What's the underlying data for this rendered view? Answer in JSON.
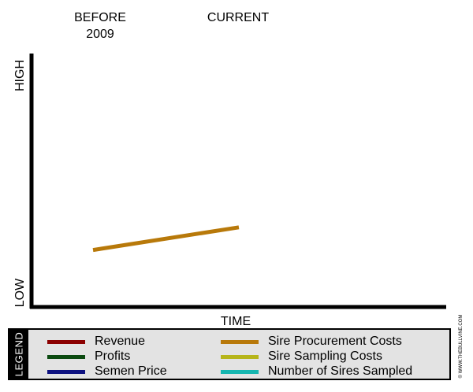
{
  "chart_data": {
    "type": "line",
    "x": [
      "BEFORE 2009",
      "CURRENT"
    ],
    "x_header_labels": [
      "BEFORE\n2009",
      "CURRENT"
    ],
    "xlabel": "TIME",
    "y_high_label": "HIGH",
    "y_low_label": "LOW",
    "ylim": [
      0,
      100
    ],
    "grid": false,
    "legend_placement": "bottom",
    "legend_title": "LEGEND",
    "series": [
      {
        "name": "Sire Procurement Costs",
        "values": [
          22,
          31
        ],
        "color": "#b8790a"
      }
    ],
    "legend": [
      {
        "name": "Revenue",
        "color": "#8b0000"
      },
      {
        "name": "Profits",
        "color": "#0b4a10"
      },
      {
        "name": "Semen Price",
        "color": "#0e1280"
      },
      {
        "name": "Sire Procurement Costs",
        "color": "#b8790a"
      },
      {
        "name": "Sire Sampling Costs",
        "color": "#b6b51a"
      },
      {
        "name": "Number of Sires Sampled",
        "color": "#16b6b0"
      }
    ]
  },
  "watermark": "© WWW.THEBULLVINE.COM"
}
